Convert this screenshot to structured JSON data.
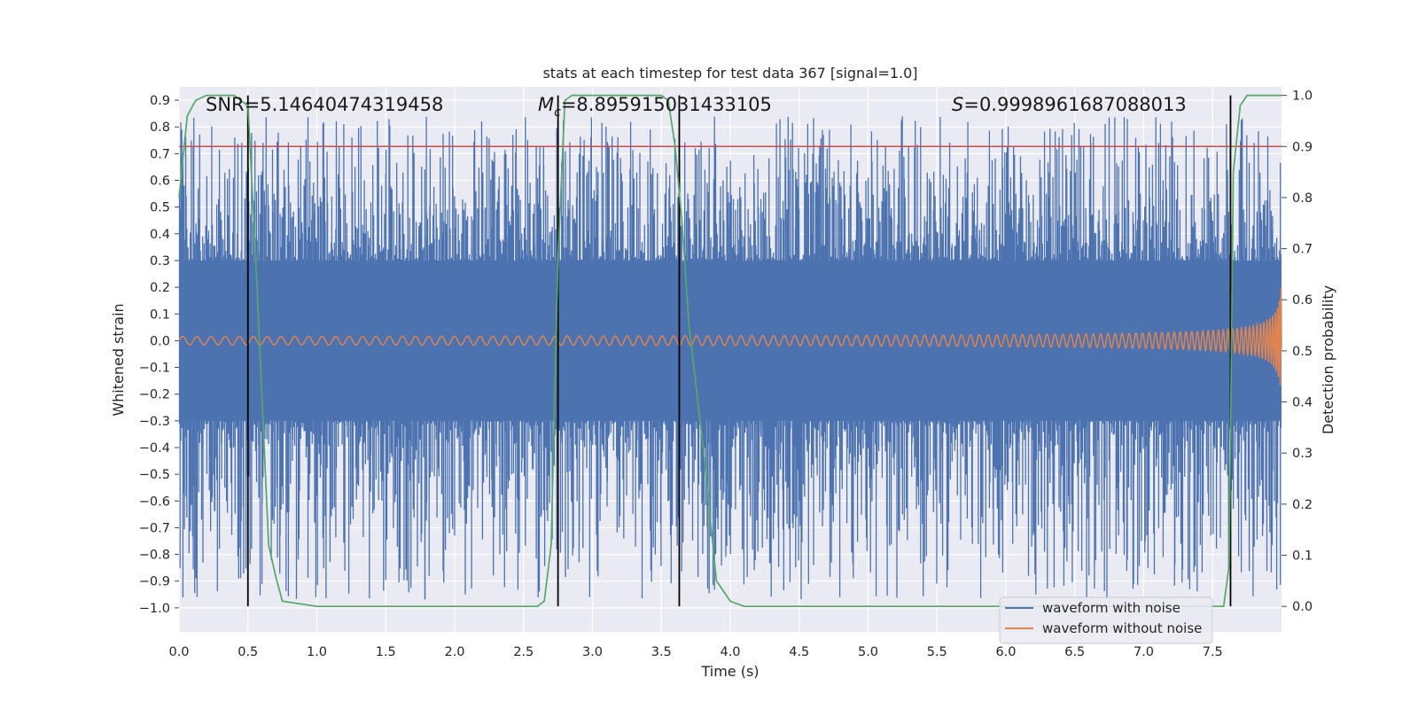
{
  "chart_data": {
    "type": "line",
    "title": "stats at each timestep for test data 367 [signal=1.0]",
    "xlabel": "Time (s)",
    "ylabel": "Whitened strain",
    "y2label": "Detection probability",
    "xlim": [
      0.0,
      8.0
    ],
    "ylim": [
      -1.09,
      0.95
    ],
    "y2lim": [
      -0.05,
      1.0167
    ],
    "xticks": [
      "0.0",
      "0.5",
      "1.0",
      "1.5",
      "2.0",
      "2.5",
      "3.0",
      "3.5",
      "4.0",
      "4.5",
      "5.0",
      "5.5",
      "6.0",
      "6.5",
      "7.0",
      "7.5"
    ],
    "yticks": [
      "0.9",
      "0.8",
      "0.7",
      "0.6",
      "0.5",
      "0.4",
      "0.3",
      "0.2",
      "0.1",
      "0.0",
      "−0.1",
      "−0.2",
      "−0.3",
      "−0.4",
      "−0.5",
      "−0.6",
      "−0.7",
      "−0.8",
      "−0.9",
      "−1.0"
    ],
    "y2ticks": [
      "1.0",
      "0.9",
      "0.8",
      "0.7",
      "0.6",
      "0.5",
      "0.4",
      "0.3",
      "0.2",
      "0.1",
      "0.0"
    ],
    "grid": true,
    "legend_position": "lower right",
    "annotations": {
      "snr": "SNR=5.14640474319458",
      "mc_symbol": "M",
      "mc_sub": "c",
      "mc_value": "=8.895915031433105",
      "s_symbol": "S",
      "s_value": "=0.9998961687088013"
    },
    "series": [
      {
        "name": "waveform with noise",
        "color": "#4c72b0",
        "axis": "left",
        "description": "dense noise band",
        "core_amplitude": 0.3,
        "peak_range": [
          -0.97,
          0.84
        ]
      },
      {
        "name": "waveform without noise",
        "color": "#dd8452",
        "axis": "left",
        "description": "chirp signal, amplitude growing toward t=8",
        "amplitude_start": 0.01,
        "amplitude_end": 0.21
      },
      {
        "color": "#55a868",
        "axis": "right",
        "x": [
          0.0,
          0.06,
          0.12,
          0.2,
          0.3,
          0.4,
          0.45,
          0.5,
          0.55,
          0.6,
          0.65,
          0.7,
          0.75,
          1.0,
          2.0,
          2.5,
          2.6,
          2.65,
          2.7,
          2.75,
          2.8,
          2.85,
          3.0,
          3.3,
          3.5,
          3.55,
          3.6,
          3.65,
          3.7,
          3.8,
          3.9,
          4.0,
          4.1,
          5.0,
          6.0,
          7.0,
          7.5,
          7.58,
          7.62,
          7.65,
          7.7,
          7.75,
          8.0
        ],
        "values": [
          0.8,
          0.96,
          0.99,
          1.0,
          1.0,
          1.0,
          0.99,
          0.98,
          0.72,
          0.42,
          0.12,
          0.06,
          0.01,
          0.0,
          0.0,
          0.0,
          0.0,
          0.01,
          0.12,
          0.68,
          0.99,
          1.0,
          1.0,
          1.0,
          1.0,
          0.99,
          0.9,
          0.75,
          0.55,
          0.32,
          0.05,
          0.01,
          0.0,
          0.0,
          0.0,
          0.0,
          0.0,
          0.0,
          0.08,
          0.85,
          0.98,
          1.0,
          1.0
        ]
      }
    ],
    "hlines": [
      {
        "axis": "right",
        "y": 0.9,
        "color": "#c44e52"
      }
    ],
    "vlines": [
      {
        "x": 0.5,
        "color": "#000000"
      },
      {
        "x": 2.75,
        "color": "#000000"
      },
      {
        "x": 3.63,
        "color": "#000000"
      },
      {
        "x": 7.63,
        "color": "#000000"
      }
    ]
  }
}
